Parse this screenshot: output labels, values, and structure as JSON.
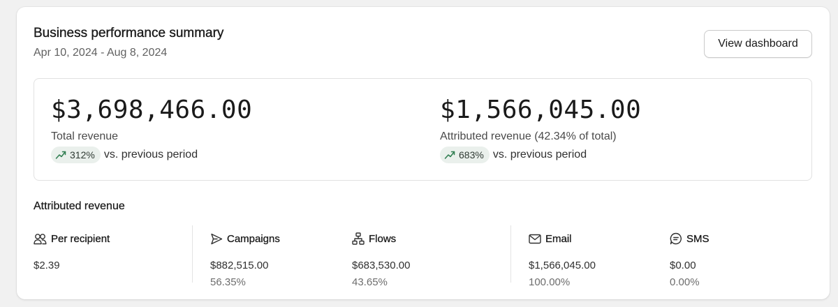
{
  "header": {
    "title": "Business performance summary",
    "date_range": "Apr 10, 2024 - Aug 8, 2024",
    "view_dashboard_label": "View dashboard"
  },
  "totals": {
    "total_revenue": {
      "value": "$3,698,466.00",
      "label": "Total revenue",
      "trend_percent": "312%",
      "trend_text": "vs. previous period",
      "trend_icon": "trend-up-icon"
    },
    "attributed_revenue": {
      "value": "$1,566,045.00",
      "label": "Attributed revenue (42.34% of total)",
      "trend_percent": "683%",
      "trend_text": "vs. previous period",
      "trend_icon": "trend-up-icon"
    }
  },
  "attributed_section": {
    "title": "Attributed revenue",
    "columns": [
      {
        "icon": "people-icon",
        "label": "Per recipient",
        "value": "$2.39",
        "pct": ""
      },
      {
        "icon": "send-icon",
        "label": "Campaigns",
        "value": "$882,515.00",
        "pct": "56.35%"
      },
      {
        "icon": "flow-icon",
        "label": "Flows",
        "value": "$683,530.00",
        "pct": "43.65%"
      },
      {
        "icon": "mail-icon",
        "label": "Email",
        "value": "$1,566,045.00",
        "pct": "100.00%"
      },
      {
        "icon": "sms-icon",
        "label": "SMS",
        "value": "$0.00",
        "pct": "0.00%"
      }
    ]
  },
  "colors": {
    "trend_badge_bg": "#eaf0ec",
    "trend_arrow": "#2e7d4f",
    "card_bg": "#ffffff",
    "page_bg": "#f1f1f1"
  }
}
